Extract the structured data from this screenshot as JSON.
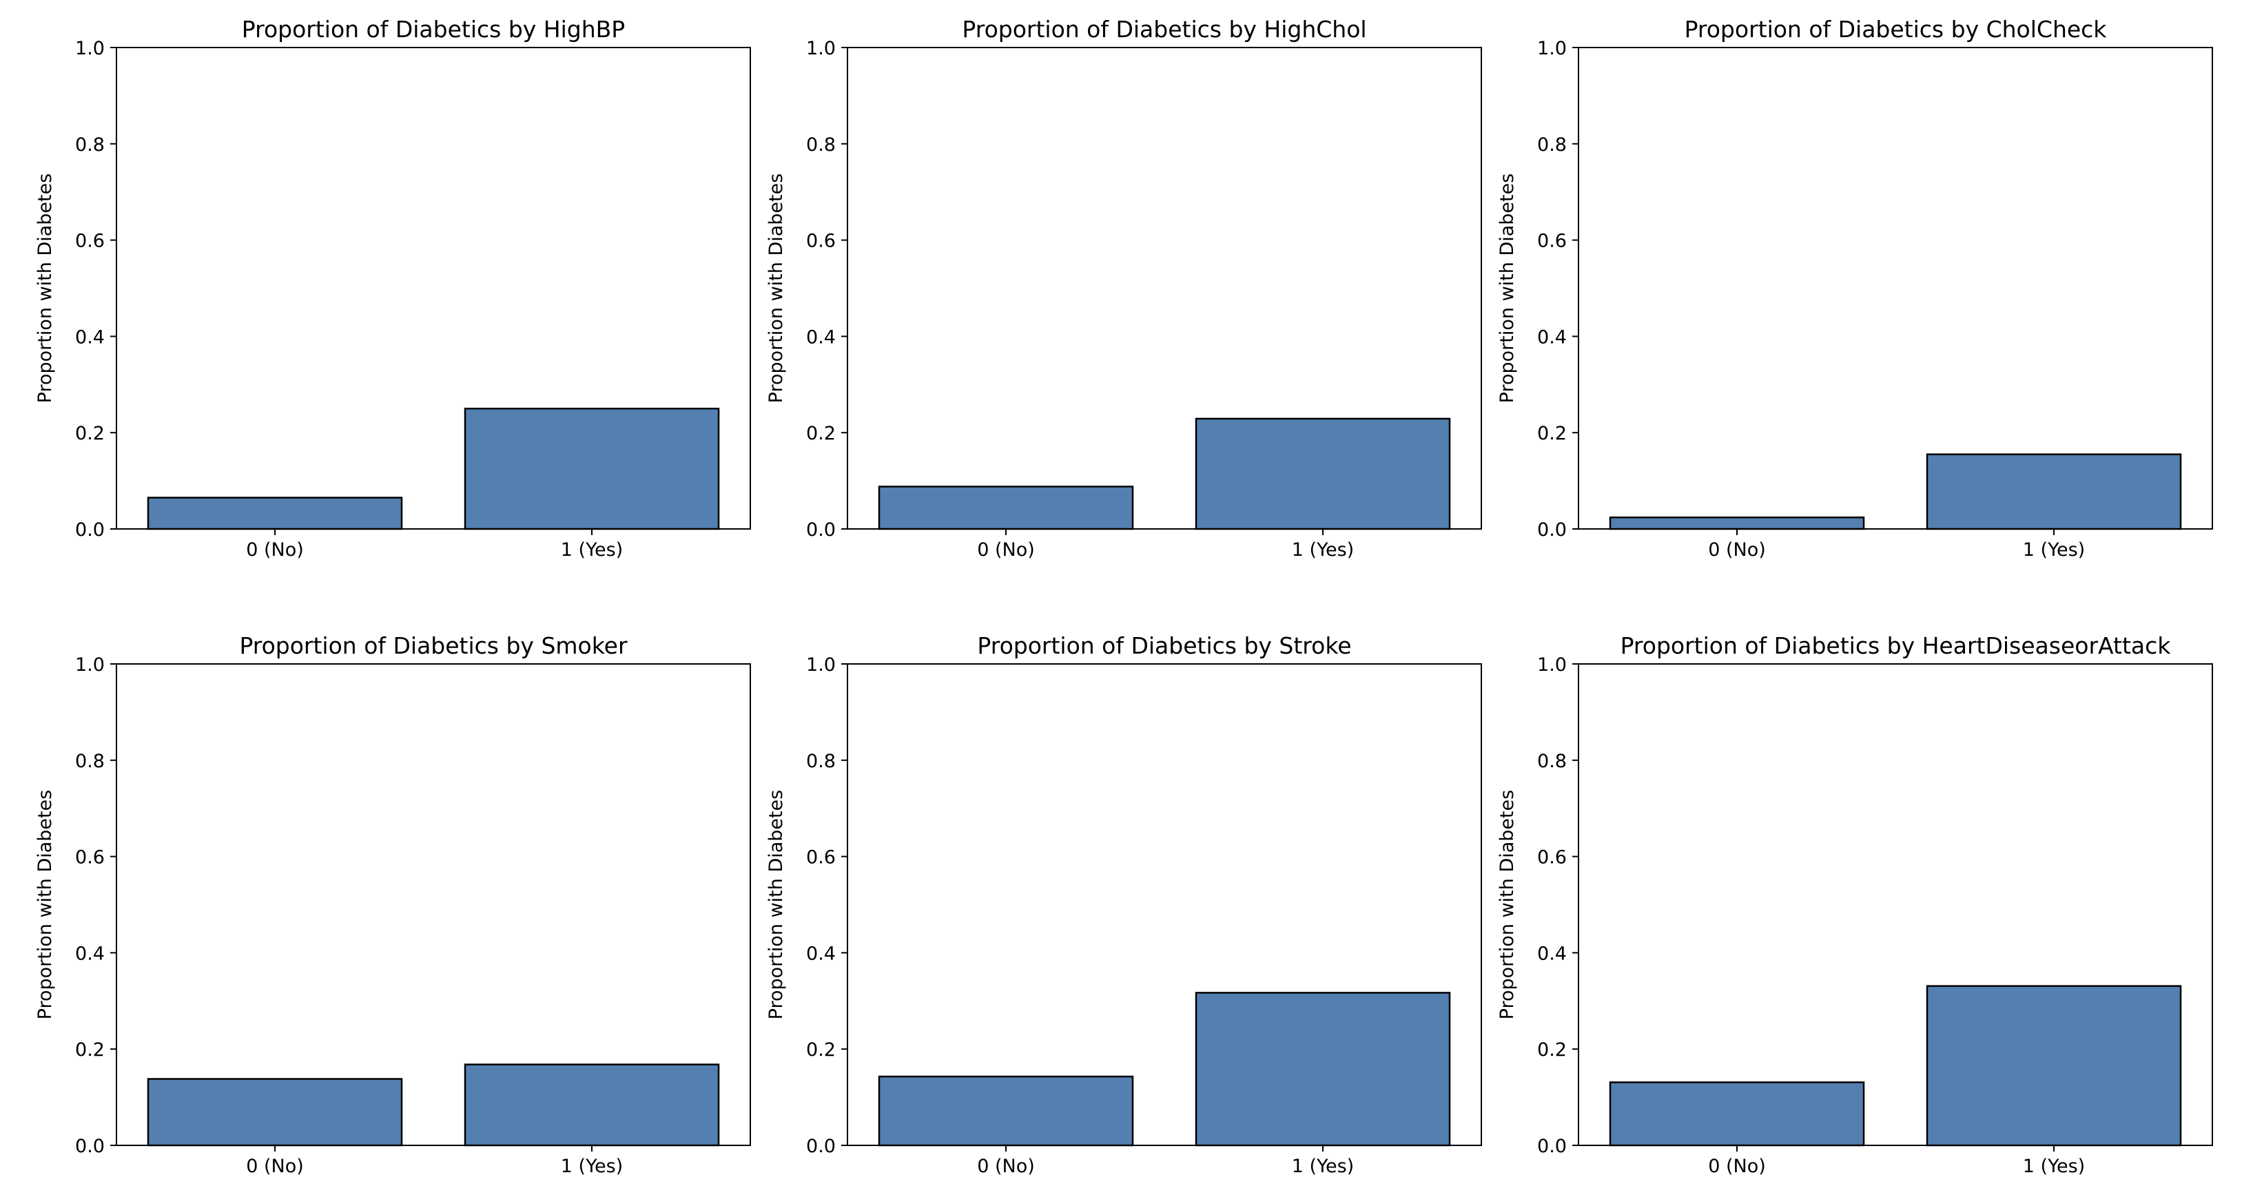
{
  "figure": {
    "bar_color": "#5380b0",
    "bar_edge_color": "#000000"
  },
  "chart_data": [
    {
      "type": "bar",
      "title": "Proportion of Diabetics by HighBP",
      "ylabel": "Proportion with Diabetes",
      "xlabel": "",
      "categories": [
        "0 (No)",
        "1 (Yes)"
      ],
      "values": [
        0.065,
        0.25
      ],
      "ylim": [
        0,
        1.0
      ],
      "yticks": [
        "0.0",
        "0.2",
        "0.4",
        "0.6",
        "0.8",
        "1.0"
      ],
      "grid": false
    },
    {
      "type": "bar",
      "title": "Proportion of Diabetics by HighChol",
      "ylabel": "Proportion with Diabetes",
      "xlabel": "",
      "categories": [
        "0 (No)",
        "1 (Yes)"
      ],
      "values": [
        0.088,
        0.229
      ],
      "ylim": [
        0,
        1.0
      ],
      "yticks": [
        "0.0",
        "0.2",
        "0.4",
        "0.6",
        "0.8",
        "1.0"
      ],
      "grid": false
    },
    {
      "type": "bar",
      "title": "Proportion of Diabetics by CholCheck",
      "ylabel": "Proportion with Diabetes",
      "xlabel": "",
      "categories": [
        "0 (No)",
        "1 (Yes)"
      ],
      "values": [
        0.024,
        0.155
      ],
      "ylim": [
        0,
        1.0
      ],
      "yticks": [
        "0.0",
        "0.2",
        "0.4",
        "0.6",
        "0.8",
        "1.0"
      ],
      "grid": false
    },
    {
      "type": "bar",
      "title": "Proportion of Diabetics by Smoker",
      "ylabel": "Proportion with Diabetes",
      "xlabel": "",
      "categories": [
        "0 (No)",
        "1 (Yes)"
      ],
      "values": [
        0.138,
        0.168
      ],
      "ylim": [
        0,
        1.0
      ],
      "yticks": [
        "0.0",
        "0.2",
        "0.4",
        "0.6",
        "0.8",
        "1.0"
      ],
      "grid": false
    },
    {
      "type": "bar",
      "title": "Proportion of Diabetics by Stroke",
      "ylabel": "Proportion with Diabetes",
      "xlabel": "",
      "categories": [
        "0 (No)",
        "1 (Yes)"
      ],
      "values": [
        0.143,
        0.317
      ],
      "ylim": [
        0,
        1.0
      ],
      "yticks": [
        "0.0",
        "0.2",
        "0.4",
        "0.6",
        "0.8",
        "1.0"
      ],
      "grid": false
    },
    {
      "type": "bar",
      "title": "Proportion of Diabetics by HeartDiseaseorAttack",
      "ylabel": "Proportion with Diabetes",
      "xlabel": "",
      "categories": [
        "0 (No)",
        "1 (Yes)"
      ],
      "values": [
        0.131,
        0.331
      ],
      "ylim": [
        0,
        1.0
      ],
      "yticks": [
        "0.0",
        "0.2",
        "0.4",
        "0.6",
        "0.8",
        "1.0"
      ],
      "grid": false
    }
  ]
}
